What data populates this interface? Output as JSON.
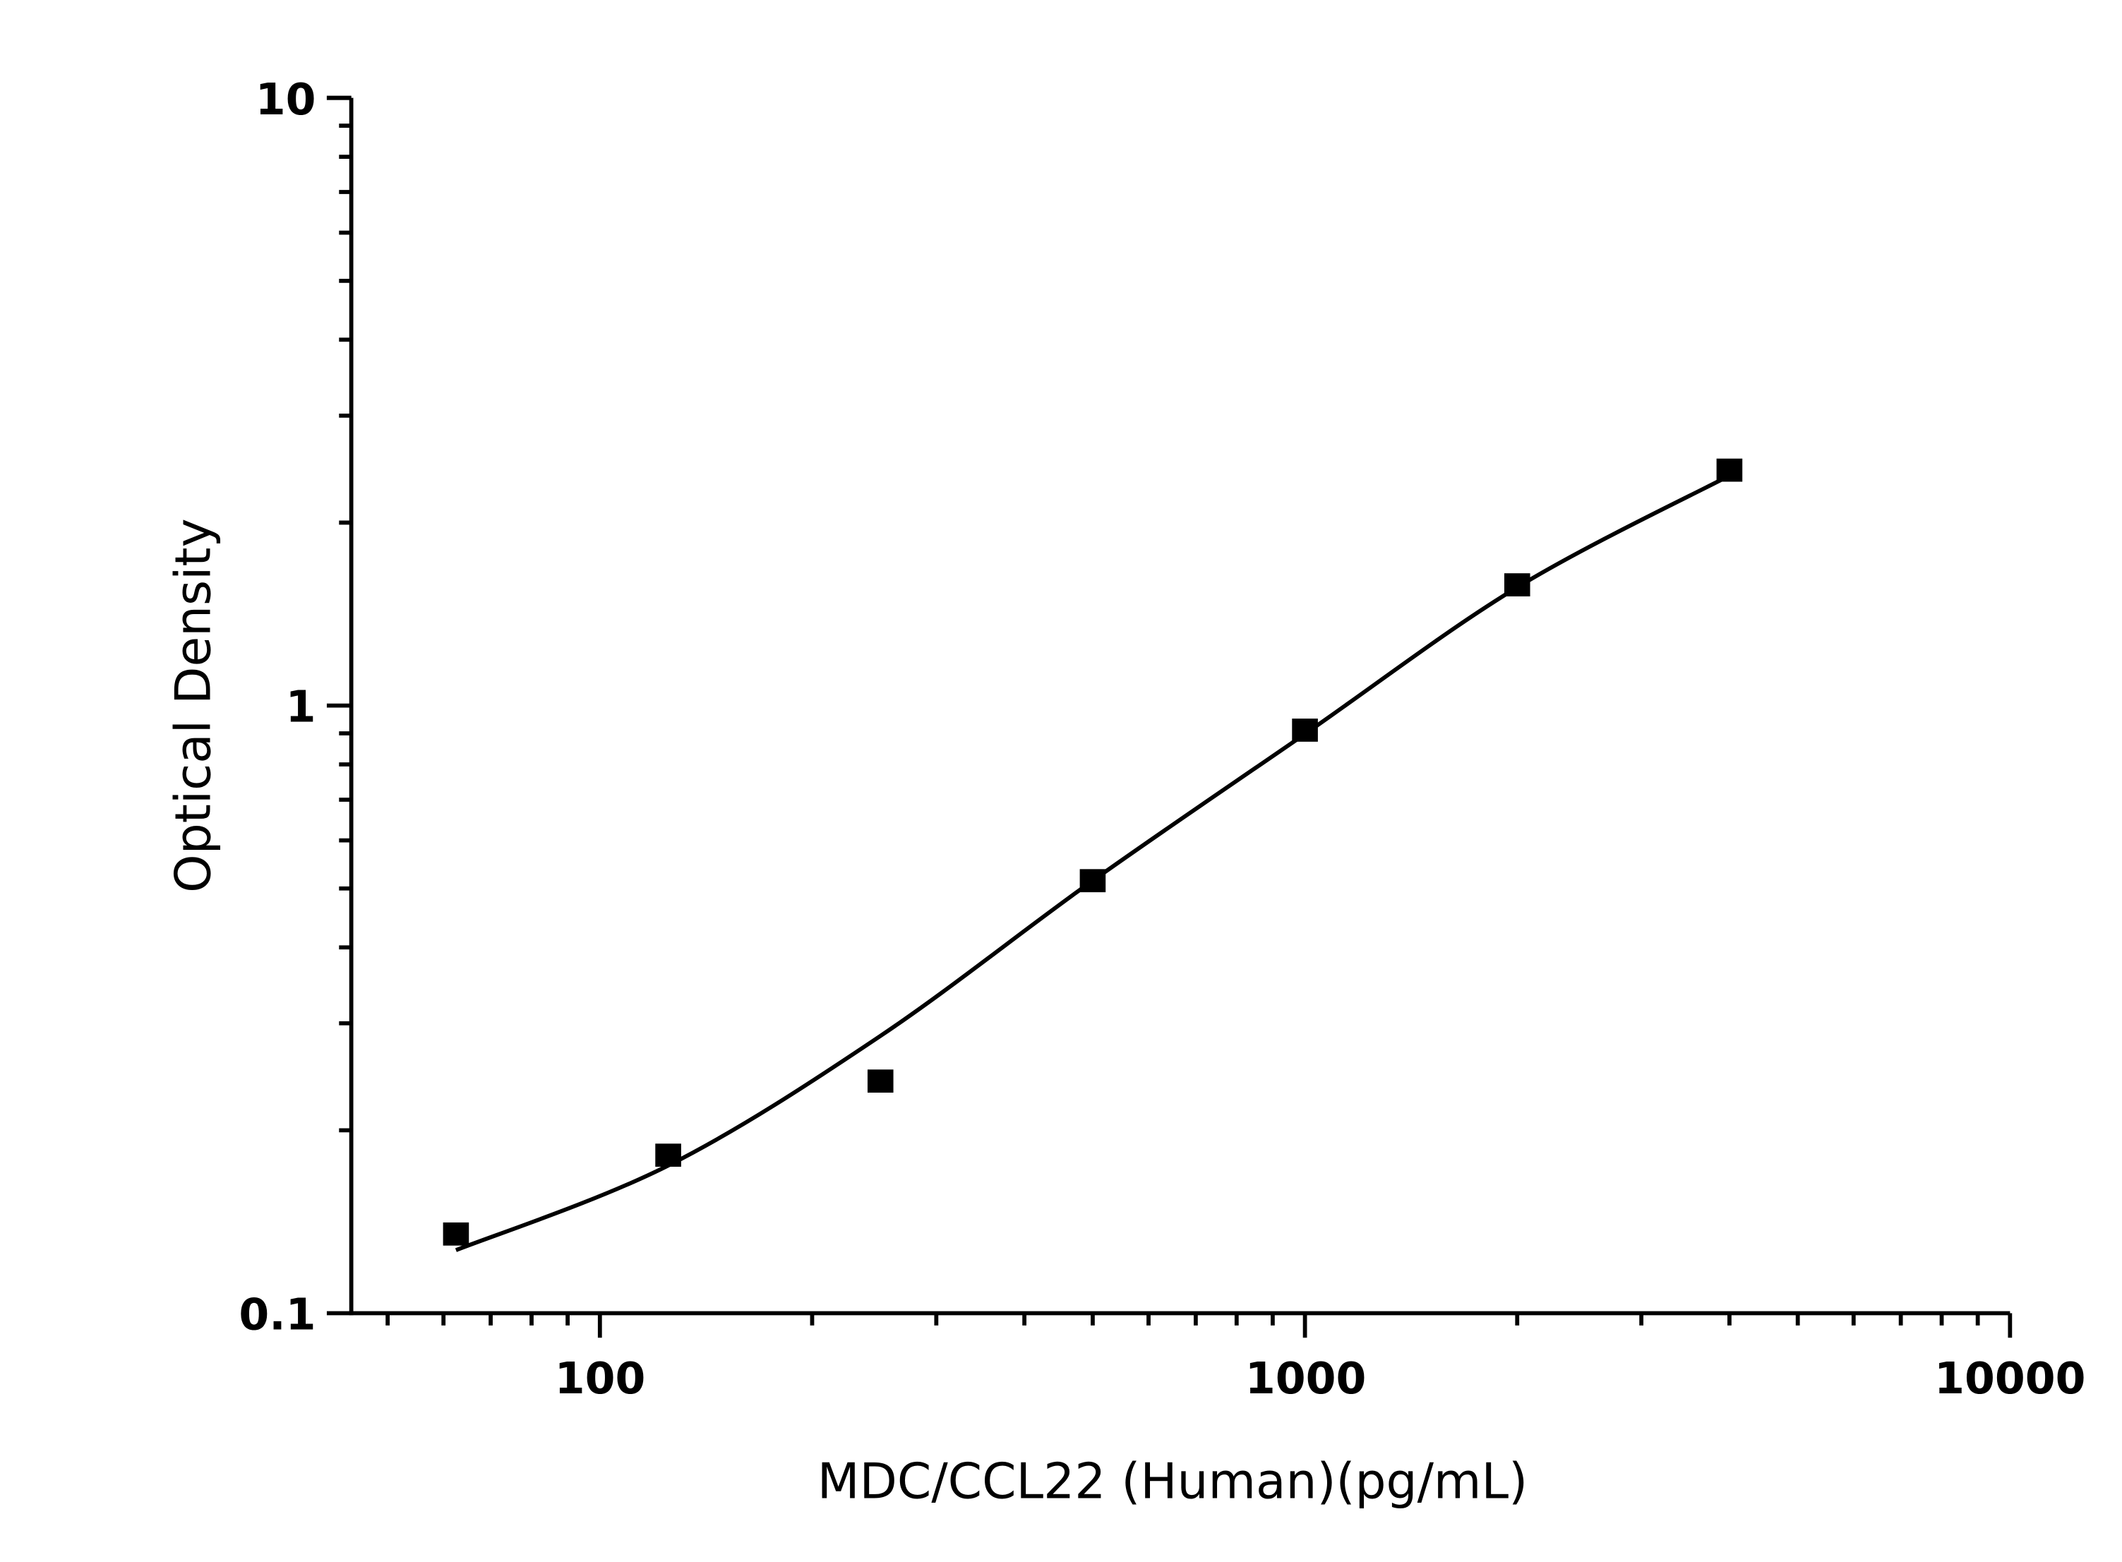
{
  "chart_data": {
    "type": "scatter",
    "title": "",
    "xlabel": "MDC/CCL22 (Human)(pg/mL)",
    "ylabel": "Optical Density",
    "x_scale": "log",
    "y_scale": "log",
    "xlim": [
      44.4,
      10000
    ],
    "ylim": [
      0.1,
      10
    ],
    "x_ticks": [
      100,
      1000,
      10000
    ],
    "x_tick_labels": [
      "100",
      "1000",
      "10000"
    ],
    "y_ticks": [
      0.1,
      1,
      10
    ],
    "y_tick_labels": [
      "0.1",
      "1",
      "10"
    ],
    "grid": false,
    "legend": "none",
    "marker": "square",
    "color": "#000000",
    "points": {
      "x": [
        62.5,
        125,
        250,
        500,
        1000,
        2000,
        4000
      ],
      "y": [
        0.135,
        0.182,
        0.241,
        0.515,
        0.911,
        1.58,
        2.44
      ]
    },
    "fit_curve": {
      "x": [
        62.5,
        125,
        250,
        500,
        1000,
        2000,
        4000
      ],
      "y": [
        0.127,
        0.175,
        0.286,
        0.515,
        0.898,
        1.565,
        2.39
      ]
    }
  }
}
